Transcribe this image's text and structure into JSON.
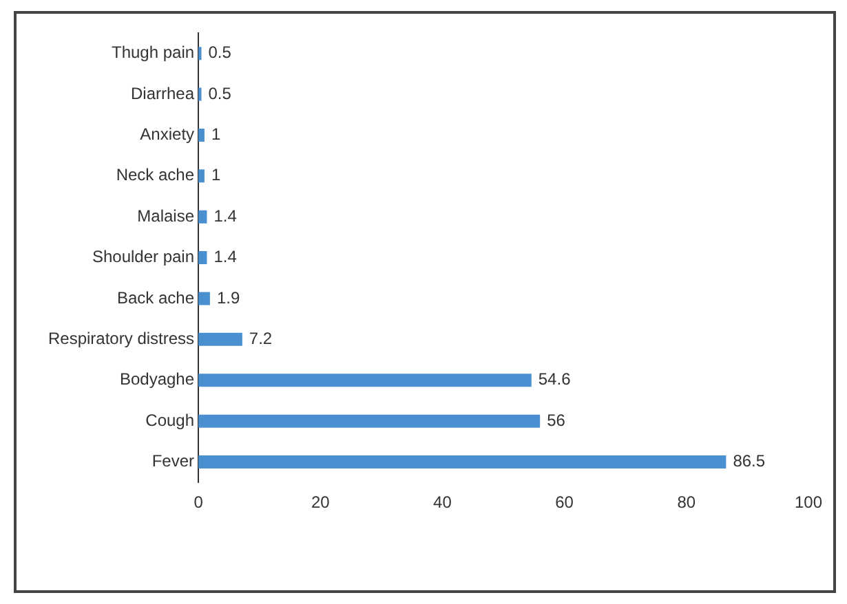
{
  "chart_data": {
    "type": "bar",
    "orientation": "horizontal",
    "categories": [
      "Thugh pain",
      "Diarrhea",
      "Anxiety",
      "Neck ache",
      "Malaise",
      "Shoulder pain",
      "Back ache",
      "Respiratory distress",
      "Bodyaghe",
      "Cough",
      "Fever"
    ],
    "values": [
      0.5,
      0.5,
      1,
      1,
      1.4,
      1.4,
      1.9,
      7.2,
      54.6,
      56,
      86.5
    ],
    "color": "#4a8fd0",
    "xlim": [
      0,
      100
    ],
    "xticks": [
      0,
      20,
      40,
      60,
      80,
      100
    ],
    "grid": false,
    "legend": false,
    "data_labels": true
  }
}
